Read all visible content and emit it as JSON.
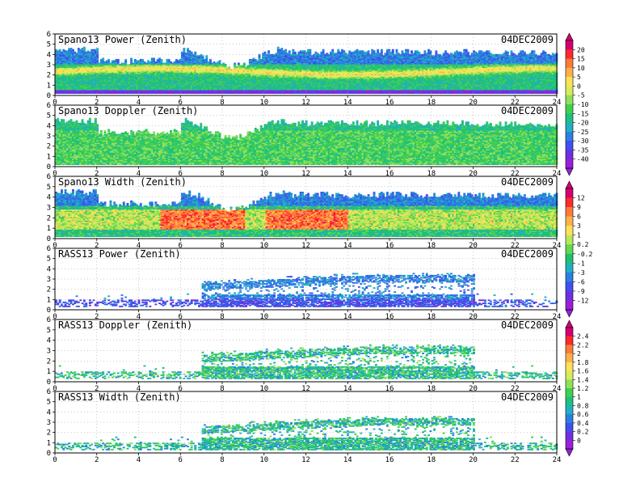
{
  "date_label": "04DEC2009",
  "chart_data": [
    {
      "type": "heatmap",
      "title": "Spano13 Power (Zenith)",
      "xlim": [
        0,
        24
      ],
      "ylim": [
        0,
        6
      ],
      "x_ticks": [
        0,
        2,
        4,
        6,
        8,
        10,
        12,
        14,
        16,
        18,
        20,
        22,
        24
      ],
      "y_ticks": [
        0,
        1,
        2,
        3,
        4,
        5,
        6
      ],
      "grid": true,
      "colorbar": "cb_power_spano"
    },
    {
      "type": "heatmap",
      "title": "Spano13 Doppler (Zenith)",
      "xlim": [
        0,
        24
      ],
      "ylim": [
        0,
        6
      ],
      "x_ticks": [
        0,
        2,
        4,
        6,
        8,
        10,
        12,
        14,
        16,
        18,
        20,
        22,
        24
      ],
      "y_ticks": [
        0,
        1,
        2,
        3,
        4,
        5,
        6
      ],
      "grid": true,
      "colorbar": "cb_power_spano"
    },
    {
      "type": "heatmap",
      "title": "Spano13 Width (Zenith)",
      "xlim": [
        0,
        24
      ],
      "ylim": [
        0,
        6
      ],
      "x_ticks": [
        0,
        2,
        4,
        6,
        8,
        10,
        12,
        14,
        16,
        18,
        20,
        22,
        24
      ],
      "y_ticks": [
        0,
        1,
        2,
        3,
        4,
        5,
        6
      ],
      "grid": true,
      "colorbar": "cb_doppler"
    },
    {
      "type": "heatmap",
      "title": "RASS13 Power (Zenith)",
      "xlim": [
        0,
        24
      ],
      "ylim": [
        0,
        6
      ],
      "x_ticks": [
        0,
        2,
        4,
        6,
        8,
        10,
        12,
        14,
        16,
        18,
        20,
        22,
        24
      ],
      "y_ticks": [
        0,
        1,
        2,
        3,
        4,
        5,
        6
      ],
      "grid": true,
      "colorbar": "cb_doppler"
    },
    {
      "type": "heatmap",
      "title": "RASS13 Doppler (Zenith)",
      "xlim": [
        0,
        24
      ],
      "ylim": [
        0,
        6
      ],
      "x_ticks": [
        0,
        2,
        4,
        6,
        8,
        10,
        12,
        14,
        16,
        18,
        20,
        22,
        24
      ],
      "y_ticks": [
        0,
        1,
        2,
        3,
        4,
        5,
        6
      ],
      "grid": true,
      "colorbar": "cb_width"
    },
    {
      "type": "heatmap",
      "title": "RASS13 Width (Zenith)",
      "xlim": [
        0,
        24
      ],
      "ylim": [
        0,
        6
      ],
      "x_ticks": [
        0,
        2,
        4,
        6,
        8,
        10,
        12,
        14,
        16,
        18,
        20,
        22,
        24
      ],
      "y_ticks": [
        0,
        1,
        2,
        3,
        4,
        5,
        6
      ],
      "grid": true,
      "colorbar": "cb_width"
    }
  ],
  "colorbars": [
    {
      "id": "cb_power_spano",
      "ticks": [
        "20",
        "15",
        "10",
        "5",
        "0",
        "-5",
        "-10",
        "-15",
        "-20",
        "-25",
        "-30",
        "-35",
        "-40"
      ],
      "colors": [
        "#d40070",
        "#ff2a2a",
        "#ff7a3a",
        "#ffb04a",
        "#ffe05a",
        "#d8ec5a",
        "#8fe05a",
        "#40d050",
        "#1fc080",
        "#20b0c0",
        "#2a80e0",
        "#4050f0",
        "#7030e0",
        "#9a20d8"
      ]
    },
    {
      "id": "cb_doppler",
      "ticks": [
        "12",
        "9",
        "6",
        "3",
        "1",
        "0.2",
        "-0.2",
        "-1",
        "-3",
        "-6",
        "-9",
        "-12"
      ],
      "colors": [
        "#d40070",
        "#ff2a2a",
        "#ff7a3a",
        "#ffb04a",
        "#ffe05a",
        "#b8e85a",
        "#60d850",
        "#20c070",
        "#20b0c0",
        "#2a80e0",
        "#4050f0",
        "#7030e0",
        "#9a20d8"
      ]
    },
    {
      "id": "cb_width",
      "ticks": [
        "2.4",
        "2.2",
        "2",
        "1.8",
        "1.6",
        "1.4",
        "1.2",
        "1",
        "0.8",
        "0.6",
        "0.4",
        "0.2",
        "0"
      ],
      "colors": [
        "#d40070",
        "#ff2a2a",
        "#ff7a3a",
        "#ffb04a",
        "#ffe05a",
        "#d8ec5a",
        "#8fe05a",
        "#40d050",
        "#1fc080",
        "#20b0c0",
        "#2a80e0",
        "#4050f0",
        "#7030e0",
        "#9a20d8"
      ]
    }
  ]
}
